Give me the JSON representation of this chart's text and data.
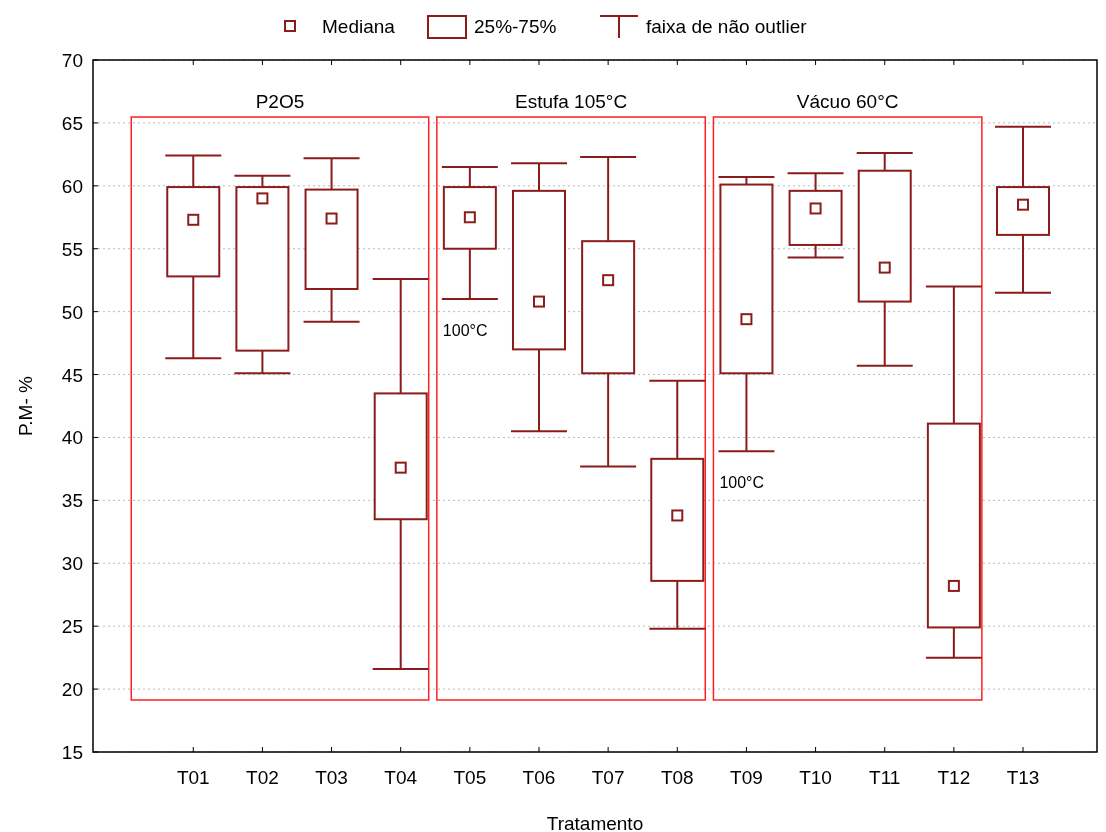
{
  "chart_data": {
    "type": "box",
    "xlabel": "Tratamento",
    "ylabel": "P.M- %",
    "ylim": [
      15,
      70
    ],
    "yticks": [
      15,
      20,
      25,
      30,
      35,
      40,
      45,
      50,
      55,
      60,
      65,
      70
    ],
    "grid": "y",
    "marker": "square",
    "color": "#8b1c1c",
    "categories": [
      "T01",
      "T02",
      "T03",
      "T04",
      "T05",
      "T06",
      "T07",
      "T08",
      "T09",
      "T10",
      "T11",
      "T12",
      "T13"
    ],
    "boxes": [
      {
        "low": 46.3,
        "q1": 52.8,
        "median": 57.3,
        "q3": 59.9,
        "high": 62.4
      },
      {
        "low": 45.1,
        "q1": 46.9,
        "median": 59.0,
        "q3": 59.9,
        "high": 60.8
      },
      {
        "low": 49.2,
        "q1": 51.8,
        "median": 57.4,
        "q3": 59.7,
        "high": 62.2
      },
      {
        "low": 21.6,
        "q1": 33.5,
        "median": 37.6,
        "q3": 43.5,
        "high": 52.6
      },
      {
        "low": 51.0,
        "q1": 55.0,
        "median": 57.5,
        "q3": 59.9,
        "high": 61.5
      },
      {
        "low": 40.5,
        "q1": 47.0,
        "median": 50.8,
        "q3": 59.6,
        "high": 61.8
      },
      {
        "low": 37.7,
        "q1": 45.1,
        "median": 52.5,
        "q3": 55.6,
        "high": 62.3
      },
      {
        "low": 24.8,
        "q1": 28.6,
        "median": 33.8,
        "q3": 38.3,
        "high": 44.5
      },
      {
        "low": 38.9,
        "q1": 45.1,
        "median": 49.4,
        "q3": 60.1,
        "high": 60.7
      },
      {
        "low": 54.3,
        "q1": 55.3,
        "median": 58.2,
        "q3": 59.6,
        "high": 61.0
      },
      {
        "low": 45.7,
        "q1": 50.8,
        "median": 53.5,
        "q3": 61.2,
        "high": 62.6
      },
      {
        "low": 22.5,
        "q1": 24.9,
        "median": 28.2,
        "q3": 41.1,
        "high": 52.0
      },
      {
        "low": 51.5,
        "q1": 56.1,
        "median": 58.5,
        "q3": 59.9,
        "high": 64.7
      }
    ],
    "annotations": [
      "Mediana",
      "25%-75%",
      "faixa de não outlier",
      "P2O5",
      "Estufa 105°C",
      "Vácuo 60°C",
      "100°C",
      "100°C"
    ]
  }
}
